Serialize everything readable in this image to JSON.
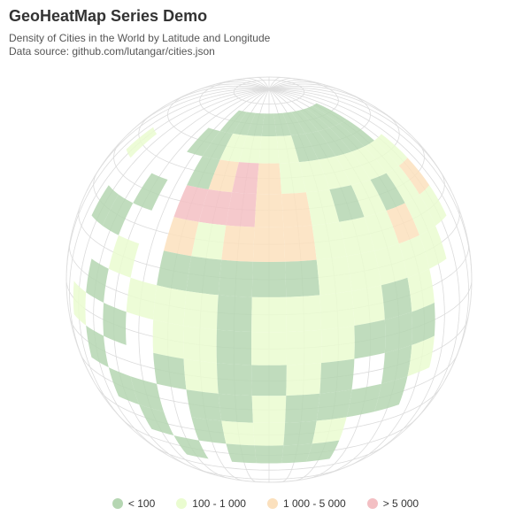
{
  "title": "GeoHeatMap Series Demo",
  "subtitle_line1": "Density of Cities in the World by Latitude and Longitude",
  "subtitle_line2": "Data source: github.com/lutangar/cities.json",
  "chart_data": {
    "type": "heatmap",
    "title": "GeoHeatMap Series Demo",
    "subtitle": "Density of Cities in the World by Latitude and Longitude",
    "projection": "orthographic",
    "center": {
      "lon": 20,
      "lat": 20
    },
    "cell_size_deg": 10,
    "legend": [
      {
        "label": "< 100",
        "color": "#b5d6b2",
        "class": 1
      },
      {
        "label": "100 - 1 000",
        "color": "#eafcd0",
        "class": 2
      },
      {
        "label": "1 000 - 5 000",
        "color": "#fbe0bd",
        "class": 3
      },
      {
        "label": "> 5 000",
        "color": "#f3bfc3",
        "class": 4
      }
    ],
    "cells": [
      {
        "lon": -10,
        "lat": 70,
        "v": 1
      },
      {
        "lon": 0,
        "lat": 70,
        "v": 1
      },
      {
        "lon": 10,
        "lat": 70,
        "v": 1
      },
      {
        "lon": 20,
        "lat": 70,
        "v": 1
      },
      {
        "lon": 30,
        "lat": 70,
        "v": 1
      },
      {
        "lon": 40,
        "lat": 70,
        "v": 1
      },
      {
        "lon": 50,
        "lat": 70,
        "v": 1
      },
      {
        "lon": 60,
        "lat": 70,
        "v": 1
      },
      {
        "lon": 70,
        "lat": 70,
        "v": 1
      },
      {
        "lon": 80,
        "lat": 70,
        "v": 1
      },
      {
        "lon": -20,
        "lat": 60,
        "v": 1
      },
      {
        "lon": -10,
        "lat": 60,
        "v": 1
      },
      {
        "lon": 0,
        "lat": 60,
        "v": 2
      },
      {
        "lon": 10,
        "lat": 60,
        "v": 2
      },
      {
        "lon": 20,
        "lat": 60,
        "v": 2
      },
      {
        "lon": 30,
        "lat": 60,
        "v": 2
      },
      {
        "lon": 40,
        "lat": 60,
        "v": 1
      },
      {
        "lon": 50,
        "lat": 60,
        "v": 1
      },
      {
        "lon": 60,
        "lat": 60,
        "v": 1
      },
      {
        "lon": 70,
        "lat": 60,
        "v": 1
      },
      {
        "lon": 80,
        "lat": 60,
        "v": 1
      },
      {
        "lon": -60,
        "lat": 50,
        "v": 2
      },
      {
        "lon": -10,
        "lat": 50,
        "v": 1
      },
      {
        "lon": 0,
        "lat": 50,
        "v": 3
      },
      {
        "lon": 10,
        "lat": 50,
        "v": 4
      },
      {
        "lon": 20,
        "lat": 50,
        "v": 3
      },
      {
        "lon": 30,
        "lat": 50,
        "v": 2
      },
      {
        "lon": 40,
        "lat": 50,
        "v": 2
      },
      {
        "lon": 50,
        "lat": 50,
        "v": 2
      },
      {
        "lon": 60,
        "lat": 50,
        "v": 2
      },
      {
        "lon": 70,
        "lat": 50,
        "v": 2
      },
      {
        "lon": 80,
        "lat": 50,
        "v": 2
      },
      {
        "lon": 90,
        "lat": 50,
        "v": 2
      },
      {
        "lon": -30,
        "lat": 40,
        "v": 1
      },
      {
        "lon": -10,
        "lat": 40,
        "v": 4
      },
      {
        "lon": 0,
        "lat": 40,
        "v": 4
      },
      {
        "lon": 10,
        "lat": 40,
        "v": 4
      },
      {
        "lon": 20,
        "lat": 40,
        "v": 3
      },
      {
        "lon": 30,
        "lat": 40,
        "v": 3
      },
      {
        "lon": 40,
        "lat": 40,
        "v": 2
      },
      {
        "lon": 50,
        "lat": 40,
        "v": 1
      },
      {
        "lon": 60,
        "lat": 40,
        "v": 2
      },
      {
        "lon": 70,
        "lat": 40,
        "v": 1
      },
      {
        "lon": 80,
        "lat": 40,
        "v": 2
      },
      {
        "lon": 90,
        "lat": 40,
        "v": 3
      },
      {
        "lon": -50,
        "lat": 30,
        "v": 1
      },
      {
        "lon": -40,
        "lat": 30,
        "v": 1
      },
      {
        "lon": -10,
        "lat": 30,
        "v": 3
      },
      {
        "lon": 0,
        "lat": 30,
        "v": 2
      },
      {
        "lon": 10,
        "lat": 30,
        "v": 3
      },
      {
        "lon": 20,
        "lat": 30,
        "v": 3
      },
      {
        "lon": 30,
        "lat": 30,
        "v": 3
      },
      {
        "lon": 40,
        "lat": 30,
        "v": 2
      },
      {
        "lon": 50,
        "lat": 30,
        "v": 2
      },
      {
        "lon": 60,
        "lat": 30,
        "v": 2
      },
      {
        "lon": 70,
        "lat": 30,
        "v": 3
      },
      {
        "lon": 80,
        "lat": 30,
        "v": 2
      },
      {
        "lon": 90,
        "lat": 30,
        "v": 2
      },
      {
        "lon": -30,
        "lat": 20,
        "v": 2
      },
      {
        "lon": -10,
        "lat": 20,
        "v": 1
      },
      {
        "lon": 0,
        "lat": 20,
        "v": 1
      },
      {
        "lon": 10,
        "lat": 20,
        "v": 1
      },
      {
        "lon": 20,
        "lat": 20,
        "v": 1
      },
      {
        "lon": 30,
        "lat": 20,
        "v": 1
      },
      {
        "lon": 40,
        "lat": 20,
        "v": 2
      },
      {
        "lon": 50,
        "lat": 20,
        "v": 2
      },
      {
        "lon": 60,
        "lat": 20,
        "v": 2
      },
      {
        "lon": 70,
        "lat": 20,
        "v": 2
      },
      {
        "lon": 80,
        "lat": 20,
        "v": 2
      },
      {
        "lon": -40,
        "lat": 10,
        "v": 1
      },
      {
        "lon": -20,
        "lat": 10,
        "v": 2
      },
      {
        "lon": -10,
        "lat": 10,
        "v": 2
      },
      {
        "lon": 0,
        "lat": 10,
        "v": 2
      },
      {
        "lon": 10,
        "lat": 10,
        "v": 1
      },
      {
        "lon": 20,
        "lat": 10,
        "v": 2
      },
      {
        "lon": 30,
        "lat": 10,
        "v": 2
      },
      {
        "lon": 40,
        "lat": 10,
        "v": 2
      },
      {
        "lon": 50,
        "lat": 10,
        "v": 2
      },
      {
        "lon": 60,
        "lat": 10,
        "v": 1
      },
      {
        "lon": 70,
        "lat": 10,
        "v": 2
      },
      {
        "lon": -50,
        "lat": 0,
        "v": 2
      },
      {
        "lon": -30,
        "lat": 0,
        "v": 1
      },
      {
        "lon": -10,
        "lat": 0,
        "v": 2
      },
      {
        "lon": 0,
        "lat": 0,
        "v": 2
      },
      {
        "lon": 10,
        "lat": 0,
        "v": 1
      },
      {
        "lon": 20,
        "lat": 0,
        "v": 2
      },
      {
        "lon": 30,
        "lat": 0,
        "v": 2
      },
      {
        "lon": 40,
        "lat": 0,
        "v": 2
      },
      {
        "lon": 50,
        "lat": 0,
        "v": 1
      },
      {
        "lon": 60,
        "lat": 0,
        "v": 1
      },
      {
        "lon": 70,
        "lat": 0,
        "v": 1
      },
      {
        "lon": -40,
        "lat": -10,
        "v": 1
      },
      {
        "lon": -10,
        "lat": -10,
        "v": 1
      },
      {
        "lon": 0,
        "lat": -10,
        "v": 2
      },
      {
        "lon": 10,
        "lat": -10,
        "v": 1
      },
      {
        "lon": 20,
        "lat": -10,
        "v": 1
      },
      {
        "lon": 30,
        "lat": -10,
        "v": 2
      },
      {
        "lon": 40,
        "lat": -10,
        "v": 1
      },
      {
        "lon": 60,
        "lat": -10,
        "v": 1
      },
      {
        "lon": 70,
        "lat": -10,
        "v": 2
      },
      {
        "lon": -30,
        "lat": -20,
        "v": 1
      },
      {
        "lon": -20,
        "lat": -20,
        "v": 1
      },
      {
        "lon": 0,
        "lat": -20,
        "v": 1
      },
      {
        "lon": 10,
        "lat": -20,
        "v": 1
      },
      {
        "lon": 20,
        "lat": -20,
        "v": 2
      },
      {
        "lon": 30,
        "lat": -20,
        "v": 1
      },
      {
        "lon": 40,
        "lat": -20,
        "v": 1
      },
      {
        "lon": 50,
        "lat": -20,
        "v": 1
      },
      {
        "lon": 60,
        "lat": -20,
        "v": 1
      },
      {
        "lon": -20,
        "lat": -30,
        "v": 1
      },
      {
        "lon": 0,
        "lat": -30,
        "v": 1
      },
      {
        "lon": 10,
        "lat": -30,
        "v": 2
      },
      {
        "lon": 20,
        "lat": -30,
        "v": 2
      },
      {
        "lon": 30,
        "lat": -30,
        "v": 1
      },
      {
        "lon": 40,
        "lat": -30,
        "v": 2
      },
      {
        "lon": -10,
        "lat": -40,
        "v": 1
      },
      {
        "lon": 10,
        "lat": -40,
        "v": 1
      },
      {
        "lon": 20,
        "lat": -40,
        "v": 1
      },
      {
        "lon": 30,
        "lat": -40,
        "v": 1
      },
      {
        "lon": 40,
        "lat": -40,
        "v": 1
      }
    ]
  }
}
